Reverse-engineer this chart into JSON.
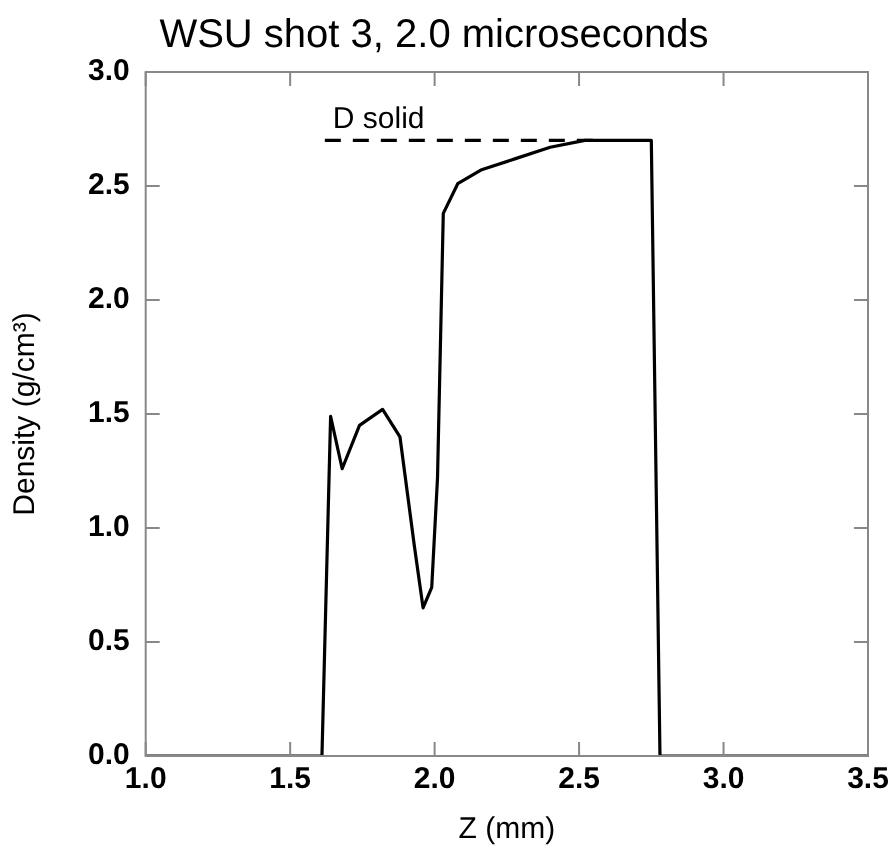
{
  "chart_data": {
    "type": "line",
    "title": "WSU shot 3, 2.0 microseconds",
    "xlabel": "Z (mm)",
    "ylabel": "Density (g/cm³)",
    "series": [
      {
        "color": "#000000",
        "x": [
          1.0,
          1.61,
          1.64,
          1.68,
          1.74,
          1.82,
          1.88,
          1.93,
          1.96,
          1.99,
          2.01,
          2.03,
          2.08,
          2.16,
          2.28,
          2.4,
          2.52,
          2.75,
          2.78,
          3.5
        ],
        "values": [
          0,
          0,
          1.49,
          1.26,
          1.45,
          1.52,
          1.4,
          0.92,
          0.65,
          0.74,
          1.22,
          2.38,
          2.51,
          2.57,
          2.62,
          2.67,
          2.7,
          2.7,
          0,
          0
        ]
      },
      {
        "name": "D solid",
        "color": "#000000",
        "line_style": "dashed",
        "x": [
          1.62,
          2.55
        ],
        "values": [
          2.7,
          2.7
        ]
      }
    ],
    "xlim": [
      1.0,
      3.5
    ],
    "xticks": [
      {
        "value": 1,
        "label": "1.0"
      },
      {
        "value": 1.5,
        "label": "1.5"
      },
      {
        "value": 2,
        "label": "2.0"
      },
      {
        "value": 2.5,
        "label": "2.5"
      },
      {
        "value": 3,
        "label": "3.0"
      },
      {
        "value": 3.5,
        "label": "3.5"
      }
    ],
    "ylim": [
      0,
      3
    ],
    "yticks": [
      {
        "value": 0,
        "label": "0.0"
      },
      {
        "value": 0.5,
        "label": "0.5"
      },
      {
        "value": 1,
        "label": "1.0"
      },
      {
        "value": 1.5,
        "label": "1.5"
      },
      {
        "value": 2,
        "label": "2.0"
      },
      {
        "value": 2.5,
        "label": "2.5"
      },
      {
        "value": 3,
        "label": "3.0"
      }
    ],
    "grid": false,
    "legend": false,
    "marker": "none"
  }
}
